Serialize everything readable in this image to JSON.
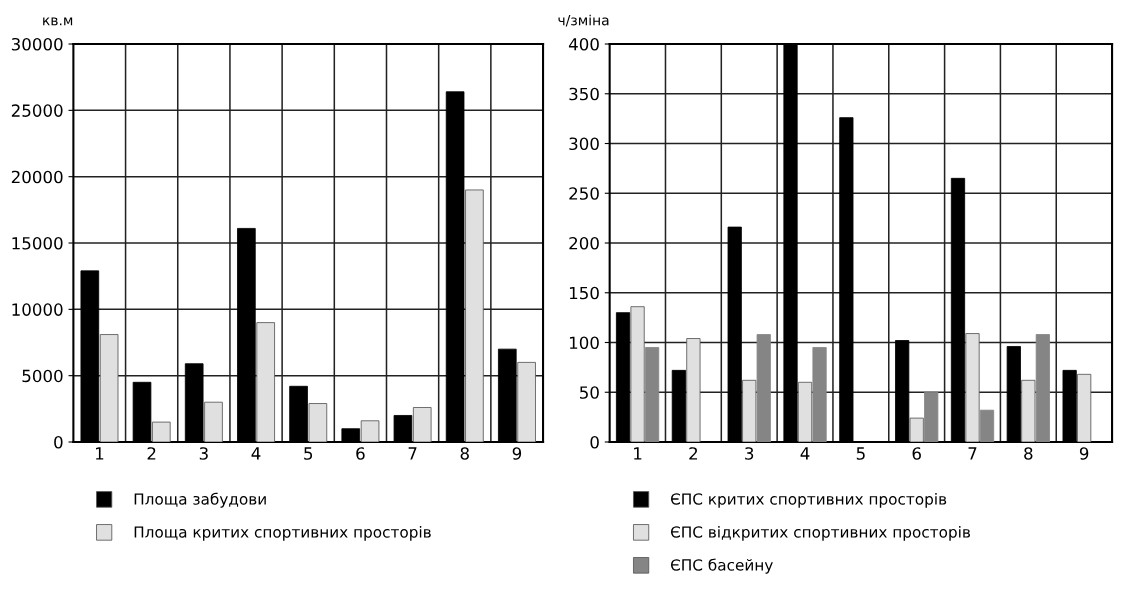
{
  "chart_data": [
    {
      "type": "bar",
      "ylabel": "кв.м",
      "categories": [
        "1",
        "2",
        "3",
        "4",
        "5",
        "6",
        "7",
        "8",
        "9"
      ],
      "ylim": [
        0,
        30000
      ],
      "yticks": [
        0,
        5000,
        10000,
        15000,
        20000,
        25000,
        30000
      ],
      "grid": true,
      "legend": "bottom",
      "series": [
        {
          "name": "Площа забудови",
          "color": "#000000",
          "values": [
            12900,
            4500,
            5900,
            16100,
            4200,
            1000,
            2000,
            26400,
            7000
          ]
        },
        {
          "name": "Площа критих спортивних просторів",
          "color": "#e0e0e0",
          "values": [
            8100,
            1500,
            3000,
            9000,
            2900,
            1600,
            2600,
            19000,
            6000
          ]
        }
      ]
    },
    {
      "type": "bar",
      "ylabel": "ч/зміна",
      "categories": [
        "1",
        "2",
        "3",
        "4",
        "5",
        "6",
        "7",
        "8",
        "9"
      ],
      "ylim": [
        0,
        400
      ],
      "yticks": [
        0,
        50,
        100,
        150,
        200,
        250,
        300,
        350,
        400
      ],
      "grid": true,
      "legend": "bottom",
      "series": [
        {
          "name": "ЄПС критих спортивних просторів",
          "color": "#000000",
          "values": [
            130,
            72,
            216,
            400,
            326,
            102,
            265,
            96,
            72
          ]
        },
        {
          "name": "ЄПС відкритих спортивних просторів",
          "color": "#e0e0e0",
          "values": [
            136,
            104,
            62,
            60,
            null,
            24,
            109,
            62,
            68
          ]
        },
        {
          "name": "ЄПС басейну",
          "color": "#858585",
          "values": [
            95,
            null,
            108,
            95,
            null,
            50,
            32,
            108,
            null
          ]
        }
      ]
    }
  ]
}
